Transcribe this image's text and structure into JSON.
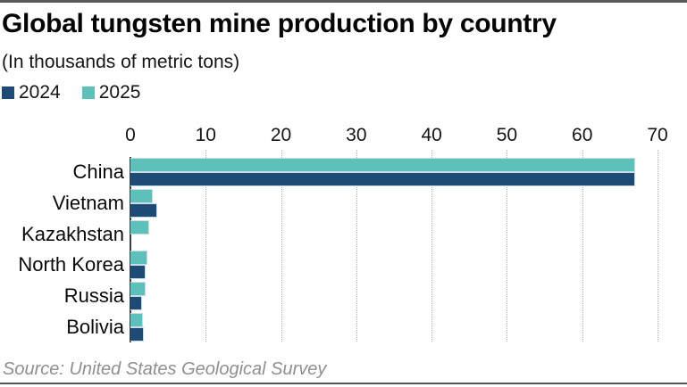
{
  "header": {
    "title": "Global tungsten mine production by country",
    "subtitle": "(In thousands of metric tons)"
  },
  "legend": [
    {
      "label": "2024",
      "color": "#1e4b76"
    },
    {
      "label": "2025",
      "color": "#5ec0bb"
    }
  ],
  "source": "Source: United States Geological Survey",
  "colors": {
    "series_2024": "#1e4b76",
    "series_2025": "#5ec0bb",
    "axis_line": "#3d3d3d",
    "gridline": "#aeaeae",
    "rule": "#59595b",
    "source_text": "#8f8f8f"
  },
  "chart_data": {
    "type": "bar",
    "orientation": "horizontal",
    "title": "Global tungsten mine production by country",
    "subtitle": "(In thousands of metric tons)",
    "unit": "thousands of metric tons",
    "categories": [
      "China",
      "Vietnam",
      "Kazakhstan",
      "North Korea",
      "Russia",
      "Bolivia"
    ],
    "series": [
      {
        "name": "2024",
        "color": "#1e4b76",
        "values": [
          67,
          3.5,
          null,
          2.0,
          1.6,
          1.8
        ]
      },
      {
        "name": "2025",
        "color": "#5ec0bb",
        "values": [
          67,
          3.0,
          2.5,
          2.2,
          2.0,
          1.7
        ]
      }
    ],
    "bar_order_within_group": [
      "2025",
      "2024"
    ],
    "xlim": [
      0,
      70
    ],
    "xticks": [
      0,
      10,
      20,
      30,
      40,
      50,
      60,
      70
    ],
    "axis_position": "top",
    "grid": "dotted-vertical",
    "legend_position": "top-left",
    "source": "Source: United States Geological Survey"
  }
}
